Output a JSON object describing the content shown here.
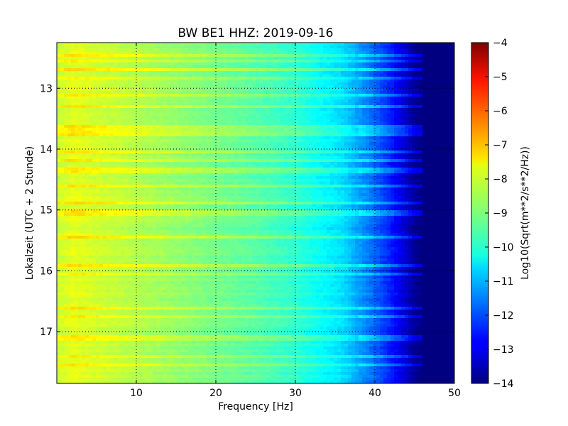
{
  "chart_data": {
    "type": "heatmap",
    "title": "BW BE1 HHZ: 2019-09-16",
    "xlabel": "Frequency [Hz]",
    "ylabel": "Lokalzeit (UTC + 2 Stunde)",
    "xlim": [
      0,
      50
    ],
    "ylim": [
      12.25,
      17.85
    ],
    "y_inverted": true,
    "x_ticks": [
      10,
      20,
      30,
      40,
      50
    ],
    "y_ticks": [
      13,
      14,
      15,
      16,
      17
    ],
    "grid": true,
    "colormap": "jet",
    "colorbar": {
      "label": "Log10(Sqrt(m**2/s**2/Hz))",
      "range": [
        -14,
        -4
      ],
      "ticks": [
        -4,
        -5,
        -6,
        -7,
        -8,
        -9,
        -10,
        -11,
        -12,
        -13,
        -14
      ]
    },
    "spectrum_profile": {
      "frequency_hz": [
        0,
        2,
        5,
        10,
        15,
        20,
        25,
        30,
        33,
        36,
        38,
        40,
        42,
        44,
        45,
        46,
        50
      ],
      "log10_amplitude": [
        -8.3,
        -8.0,
        -8.2,
        -8.5,
        -8.8,
        -9.1,
        -9.4,
        -9.8,
        -10.2,
        -10.6,
        -11.2,
        -11.8,
        -12.5,
        -13.3,
        -13.8,
        -14.0,
        -14.0
      ]
    },
    "bright_bands_hours": [
      12.45,
      12.55,
      12.7,
      12.85,
      13.1,
      13.3,
      13.65,
      13.75,
      14.05,
      14.2,
      14.35,
      14.6,
      14.9,
      15.05,
      15.45,
      15.9,
      16.05,
      16.6,
      16.75,
      17.1,
      17.4,
      17.55
    ]
  }
}
